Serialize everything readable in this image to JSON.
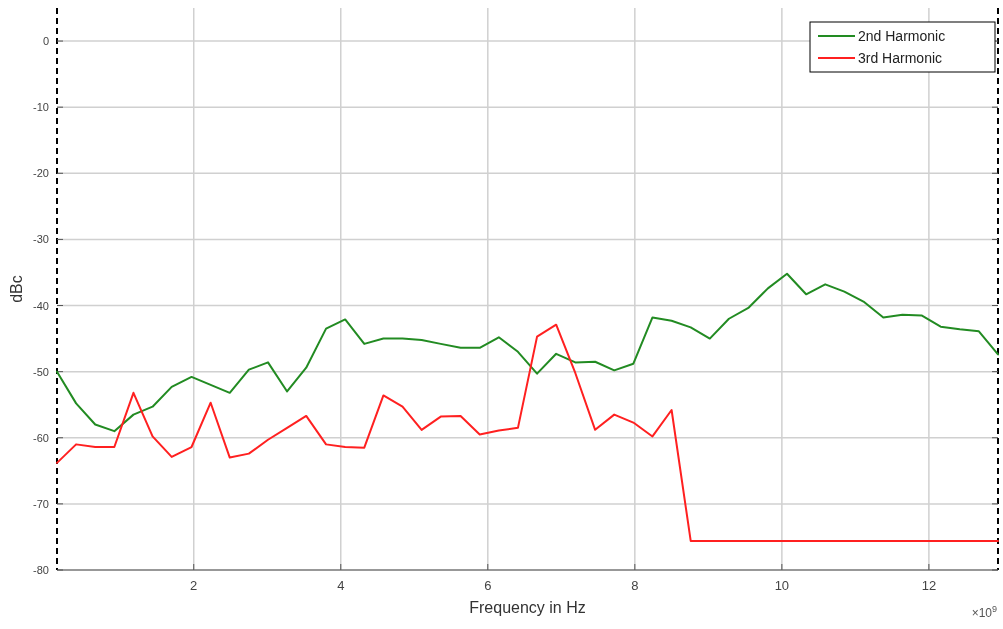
{
  "chart_data": {
    "type": "line",
    "xlabel": "Frequency in Hz",
    "ylabel": "dBc",
    "annotations": [
      "×10$^{9}$"
    ],
    "x": [
      0.14,
      0.4,
      0.66,
      0.92,
      1.18,
      1.44,
      1.7,
      1.97,
      2.23,
      2.49,
      2.75,
      3.01,
      3.27,
      3.53,
      3.8,
      4.06,
      4.32,
      4.58,
      4.84,
      5.1,
      5.36,
      5.63,
      5.89,
      6.15,
      6.41,
      6.67,
      6.93,
      7.19,
      7.46,
      7.72,
      7.98,
      8.24,
      8.5,
      8.76,
      9.02,
      9.28,
      9.55,
      9.81,
      10.07,
      10.33,
      10.59,
      10.85,
      11.11,
      11.38,
      11.64,
      11.9,
      12.16,
      12.42,
      12.68,
      12.94
    ],
    "series": [
      {
        "name": "2nd Harmonic",
        "color": "#228b22",
        "values": [
          -50,
          -54.8,
          -58,
          -59,
          -56.5,
          -55.3,
          -52.3,
          -50.8,
          -52,
          -53.2,
          -49.7,
          -48.6,
          -53,
          -49.4,
          -43.5,
          -42.1,
          -45.8,
          -45,
          -45,
          -45.2,
          -45.8,
          -46.4,
          -46.4,
          -44.8,
          -47,
          -50.3,
          -47.3,
          -48.6,
          -48.5,
          -49.8,
          -48.8,
          -41.8,
          -42.3,
          -43.3,
          -45,
          -42,
          -40.3,
          -37.4,
          -35.2,
          -38.3,
          -36.8,
          -37.9,
          -39.4,
          -41.8,
          -41.4,
          -41.5,
          -43.2,
          -43.6,
          -43.9,
          -47.4
        ]
      },
      {
        "name": "3rd Harmonic",
        "color": "#ff2020",
        "values": [
          -63.8,
          -61,
          -61.4,
          -61.4,
          -53.2,
          -59.8,
          -62.9,
          -61.4,
          -54.7,
          -63,
          -62.4,
          -60.3,
          -58.5,
          -56.7,
          -61,
          -61.4,
          -61.5,
          -53.6,
          -55.3,
          -58.8,
          -56.8,
          -56.7,
          -59.5,
          -58.9,
          -58.5,
          -44.7,
          -42.9,
          -50.2,
          -58.8,
          -56.5,
          -57.7,
          -59.8,
          -55.8,
          -75.6,
          -75.6,
          -75.6,
          -75.6,
          -75.6,
          -75.6,
          -75.6,
          -75.6,
          -75.6,
          -75.6,
          -75.6,
          -75.6,
          -75.6,
          -75.6,
          -75.6,
          -75.6,
          -75.6
        ]
      }
    ],
    "xlim": [
      0.14,
      12.94
    ],
    "xticks": [
      2,
      4,
      6,
      8,
      10,
      12
    ],
    "ylim": [
      -80,
      5
    ],
    "yticks": [
      -80,
      -70,
      -60,
      -50,
      -40,
      -30,
      -20,
      -10,
      0
    ],
    "grid": true,
    "legend": "top right",
    "marker": "none",
    "line_style": "solid"
  }
}
